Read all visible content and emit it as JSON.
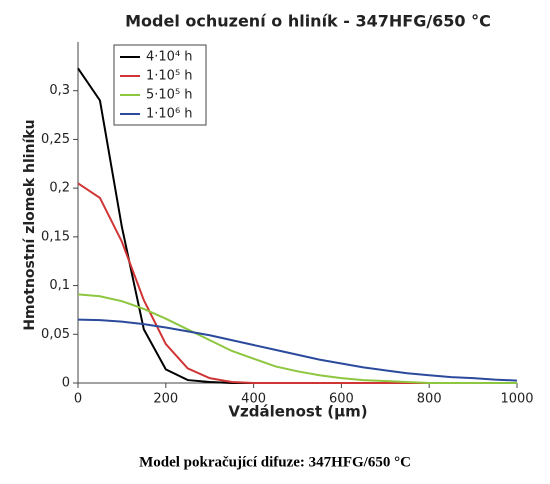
{
  "chart_data": {
    "type": "line",
    "title": "Model ochuzení o hliník - 347HFG/650 °C",
    "xlabel": "Vzdálenost (µm)",
    "ylabel": "Hmotnostní zlomek hliníku",
    "caption": "Model pokračující difuze: 347HFG/650 °C",
    "x": [
      0,
      50,
      100,
      150,
      200,
      250,
      300,
      350,
      400,
      450,
      500,
      550,
      600,
      650,
      700,
      750,
      800,
      850,
      900,
      950,
      1000
    ],
    "series": [
      {
        "name": "4·10⁴ h",
        "color": "#000000",
        "values": [
          0.323,
          0.29,
          0.16,
          0.055,
          0.014,
          0.003,
          0.001,
          0,
          0,
          0,
          0,
          0,
          0,
          0,
          0,
          0,
          0,
          0,
          0,
          0,
          0
        ]
      },
      {
        "name": "1·10⁵ h",
        "color": "#d03434",
        "values": [
          0.205,
          0.19,
          0.145,
          0.085,
          0.04,
          0.015,
          0.005,
          0.001,
          0,
          0,
          0,
          0,
          0,
          0,
          0,
          0,
          0,
          0,
          0,
          0,
          0
        ]
      },
      {
        "name": "5·10⁵ h",
        "color": "#8dc63f",
        "values": [
          0.091,
          0.089,
          0.084,
          0.076,
          0.066,
          0.055,
          0.044,
          0.033,
          0.025,
          0.017,
          0.012,
          0.008,
          0.005,
          0.003,
          0.002,
          0.001,
          0,
          0,
          0,
          0,
          0
        ]
      },
      {
        "name": "1·10⁶ h",
        "color": "#2b4a9c",
        "values": [
          0.065,
          0.0645,
          0.063,
          0.0604,
          0.057,
          0.053,
          0.049,
          0.044,
          0.039,
          0.034,
          0.029,
          0.024,
          0.02,
          0.016,
          0.013,
          0.01,
          0.008,
          0.006,
          0.005,
          0.0035,
          0.0025
        ]
      }
    ],
    "xlim": [
      0,
      1000
    ],
    "xticks": [
      0,
      200,
      400,
      600,
      800,
      1000
    ],
    "ylim": [
      0,
      0.35
    ],
    "yticks": [
      0,
      {
        "value": 0.05,
        "label": "0,05"
      },
      {
        "value": 0.1,
        "label": "0,1"
      },
      {
        "value": 0.15,
        "label": "0,15"
      },
      {
        "value": 0.2,
        "label": "0,2"
      },
      {
        "value": 0.25,
        "label": "0,25"
      },
      {
        "value": 0.3,
        "label": "0,3"
      }
    ],
    "legend": "upper left",
    "grid": false
  }
}
